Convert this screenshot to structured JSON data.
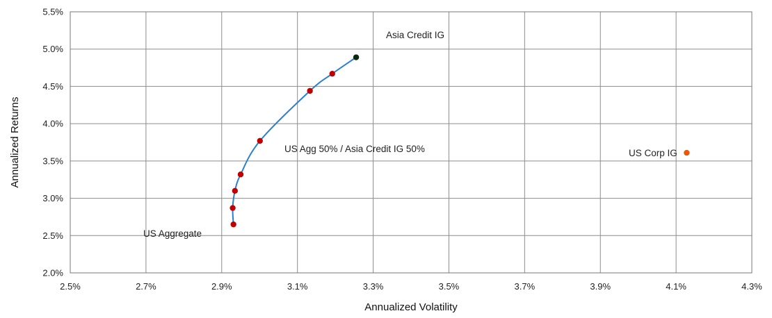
{
  "chart_data": {
    "type": "scatter",
    "title": "",
    "xlabel": "Annualized Volatility",
    "ylabel": "Annualized Returns",
    "xlim": [
      2.5,
      4.3
    ],
    "ylim": [
      2.0,
      5.5
    ],
    "x_ticks": [
      "2.5%",
      "2.7%",
      "2.9%",
      "3.1%",
      "3.3%",
      "3.5%",
      "3.7%",
      "3.9%",
      "4.1%",
      "4.3%"
    ],
    "y_ticks": [
      "2.0%",
      "2.5%",
      "3.0%",
      "3.5%",
      "4.0%",
      "4.5%",
      "5.0%",
      "5.5%"
    ],
    "grid": true,
    "colors": {
      "frontier_line": "#2a7fd0",
      "frontier_points": "#c00000",
      "asia_point": "#0b2a0b",
      "us_corp_point": "#e8580c",
      "grid": "#8c8c8c"
    },
    "series": [
      {
        "points": [
          {
            "x": 2.931,
            "y": 2.65
          },
          {
            "x": 2.929,
            "y": 2.87
          },
          {
            "x": 2.935,
            "y": 3.1
          },
          {
            "x": 2.95,
            "y": 3.32
          },
          {
            "x": 3.001,
            "y": 3.77
          },
          {
            "x": 3.133,
            "y": 4.44
          },
          {
            "x": 3.192,
            "y": 4.67
          },
          {
            "x": 3.255,
            "y": 4.89
          }
        ]
      },
      {
        "points": [
          {
            "x": 4.128,
            "y": 3.61
          }
        ]
      }
    ],
    "annotations": {
      "us_aggregate": "US Aggregate",
      "asia_credit": "Asia Credit IG",
      "mix": "US Agg 50% / Asia Credit IG 50%",
      "us_corp": "US Corp IG"
    }
  }
}
